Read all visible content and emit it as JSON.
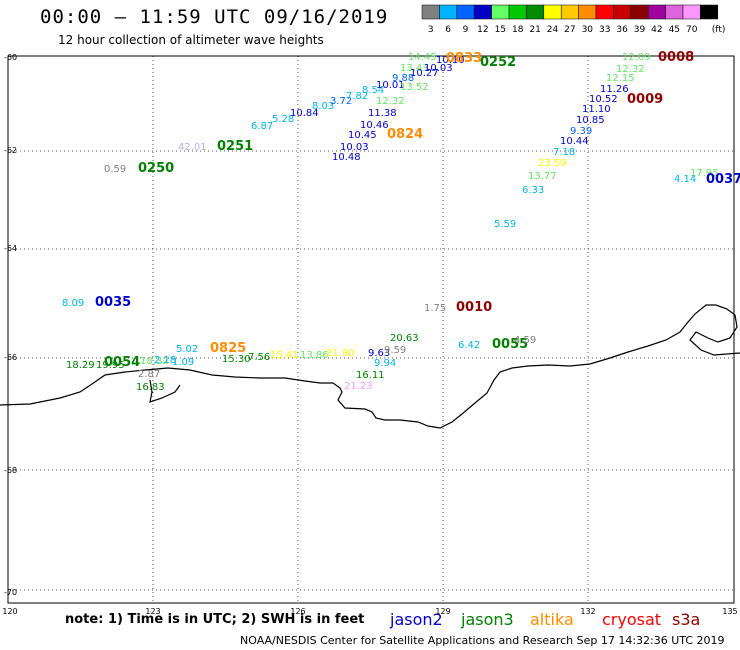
{
  "header": {
    "title": "00:00 – 11:59 UTC 09/16/2019",
    "subtitle": "12 hour collection of altimeter wave heights"
  },
  "colorbar": {
    "unit": "(ft)",
    "bins": [
      {
        "label": "3",
        "color": "#808080"
      },
      {
        "label": "6",
        "color": "#00b4ff"
      },
      {
        "label": "9",
        "color": "#0064ff"
      },
      {
        "label": "12",
        "color": "#0000c8"
      },
      {
        "label": "15",
        "color": "#64ff64"
      },
      {
        "label": "18",
        "color": "#00c800"
      },
      {
        "label": "21",
        "color": "#008c00"
      },
      {
        "label": "24",
        "color": "#ffff00"
      },
      {
        "label": "27",
        "color": "#ffc800"
      },
      {
        "label": "30",
        "color": "#ff8c00"
      },
      {
        "label": "33",
        "color": "#ff0000"
      },
      {
        "label": "36",
        "color": "#c80000"
      },
      {
        "label": "39",
        "color": "#8c0000"
      },
      {
        "label": "42",
        "color": "#a000a0"
      },
      {
        "label": "45",
        "color": "#dc64dc"
      },
      {
        "label": "70",
        "color": "#ff96ff"
      },
      {
        "label": "",
        "color": "#000000"
      }
    ]
  },
  "axes": {
    "lat_labels": [
      "-60",
      "-62",
      "-64",
      "-66",
      "-68",
      "-70"
    ],
    "lon_labels": [
      "120",
      "123",
      "126",
      "129",
      "132",
      "135"
    ]
  },
  "observations": [
    {
      "text": "0.59",
      "color": "#808080"
    },
    {
      "text": "0250",
      "color": "#008000",
      "pass": true
    },
    {
      "text": "42.01",
      "color": "#b4b4e6"
    },
    {
      "text": "0251",
      "color": "#008000",
      "pass": true
    },
    {
      "text": "6.87",
      "color": "#00b4e6"
    },
    {
      "text": "5.28",
      "color": "#00b4e6"
    },
    {
      "text": "10.84",
      "color": "#0000c8"
    },
    {
      "text": "8.03",
      "color": "#00b4e6"
    },
    {
      "text": "3.72",
      "color": "#0064ff"
    },
    {
      "text": "7.82",
      "color": "#00b4e6"
    },
    {
      "text": "8.54",
      "color": "#00b4e6"
    },
    {
      "text": "10.01",
      "color": "#0000c8"
    },
    {
      "text": "9.88",
      "color": "#0064ff"
    },
    {
      "text": "13.52",
      "color": "#64e664"
    },
    {
      "text": "12.32",
      "color": "#64e664"
    },
    {
      "text": "11.38",
      "color": "#0000c8"
    },
    {
      "text": "10.46",
      "color": "#0000c8"
    },
    {
      "text": "10.45",
      "color": "#0000c8"
    },
    {
      "text": "0824",
      "color": "#ff8c00",
      "pass": true
    },
    {
      "text": "10.03",
      "color": "#0000c8"
    },
    {
      "text": "10.48",
      "color": "#0000c8"
    },
    {
      "text": "14.45",
      "color": "#64e664"
    },
    {
      "text": "13.43",
      "color": "#64e664"
    },
    {
      "text": "10.27",
      "color": "#0000c8"
    },
    {
      "text": "10.03",
      "color": "#0000c8"
    },
    {
      "text": "10.10",
      "color": "#0000c8"
    },
    {
      "text": "0833",
      "color": "#ff8c00",
      "pass": true
    },
    {
      "text": "0252",
      "color": "#008000",
      "pass": true
    },
    {
      "text": "12.09",
      "color": "#64e664"
    },
    {
      "text": "0008",
      "color": "#8c0000",
      "pass": true
    },
    {
      "text": "12.32",
      "color": "#64e664"
    },
    {
      "text": "12.15",
      "color": "#64e664"
    },
    {
      "text": "11.26",
      "color": "#0000c8"
    },
    {
      "text": "10.52",
      "color": "#0000c8"
    },
    {
      "text": "0009",
      "color": "#8c0000",
      "pass": true
    },
    {
      "text": "11.10",
      "color": "#0000c8"
    },
    {
      "text": "10.85",
      "color": "#0000c8"
    },
    {
      "text": "9.39",
      "color": "#0064ff"
    },
    {
      "text": "10.44",
      "color": "#0000c8"
    },
    {
      "text": "7.18",
      "color": "#00b4e6"
    },
    {
      "text": "23.59",
      "color": "#ffff00"
    },
    {
      "text": "13.77",
      "color": "#64e664"
    },
    {
      "text": "6.33",
      "color": "#00b4e6"
    },
    {
      "text": "17.95",
      "color": "#64e664"
    },
    {
      "text": "4.14",
      "color": "#00b4e6"
    },
    {
      "text": "0037",
      "color": "#0000c8",
      "pass": true
    },
    {
      "text": "5.59",
      "color": "#00b4e6"
    },
    {
      "text": "8.09",
      "color": "#00b4e6"
    },
    {
      "text": "0035",
      "color": "#0000c8",
      "pass": true
    },
    {
      "text": "1.75",
      "color": "#808080"
    },
    {
      "text": "0010",
      "color": "#8c0000",
      "pass": true
    },
    {
      "text": "20.63",
      "color": "#008000"
    },
    {
      "text": "6.42",
      "color": "#00b4e6"
    },
    {
      "text": "0055",
      "color": "#008000",
      "pass": true
    },
    {
      "text": "4.59",
      "color": "#808080"
    },
    {
      "text": "5.02",
      "color": "#00b4e6"
    },
    {
      "text": "0825",
      "color": "#ff8c00",
      "pass": true
    },
    {
      "text": "9.63",
      "color": "#0000c8"
    },
    {
      "text": "9.59",
      "color": "#808080"
    },
    {
      "text": "9.94",
      "color": "#00b4e6"
    },
    {
      "text": "18.29",
      "color": "#008000"
    },
    {
      "text": "19.95",
      "color": "#008000"
    },
    {
      "text": "0054",
      "color": "#008000",
      "pass": true
    },
    {
      "text": "18.32",
      "color": "#64e664"
    },
    {
      "text": "2.18",
      "color": "#00b4e6"
    },
    {
      "text": "1.09",
      "color": "#00b4e6"
    },
    {
      "text": "15.30",
      "color": "#008000"
    },
    {
      "text": "7.56",
      "color": "#008000"
    },
    {
      "text": "15.41",
      "color": "#ffff00"
    },
    {
      "text": "13.86",
      "color": "#64e664"
    },
    {
      "text": "21.90",
      "color": "#ffff00"
    },
    {
      "text": "16.11",
      "color": "#008000"
    },
    {
      "text": "21.23",
      "color": "#ff96ff"
    },
    {
      "text": "2.87",
      "color": "#808080"
    },
    {
      "text": "16.83",
      "color": "#008000"
    }
  ],
  "footer": {
    "note": "note: 1) Time is in UTC; 2) SWH is in feet",
    "legend": [
      {
        "name": "jason2",
        "color": "#0000c8"
      },
      {
        "name": "jason3",
        "color": "#008000"
      },
      {
        "name": "altika",
        "color": "#ff8c00"
      },
      {
        "name": "cryosat",
        "color": "#ff0000"
      },
      {
        "name": "s3a",
        "color": "#8c0000"
      }
    ],
    "credit": "NOAA/NESDIS Center for Satellite Applications and Research    Sep 17 14:32:36 UTC 2019"
  }
}
